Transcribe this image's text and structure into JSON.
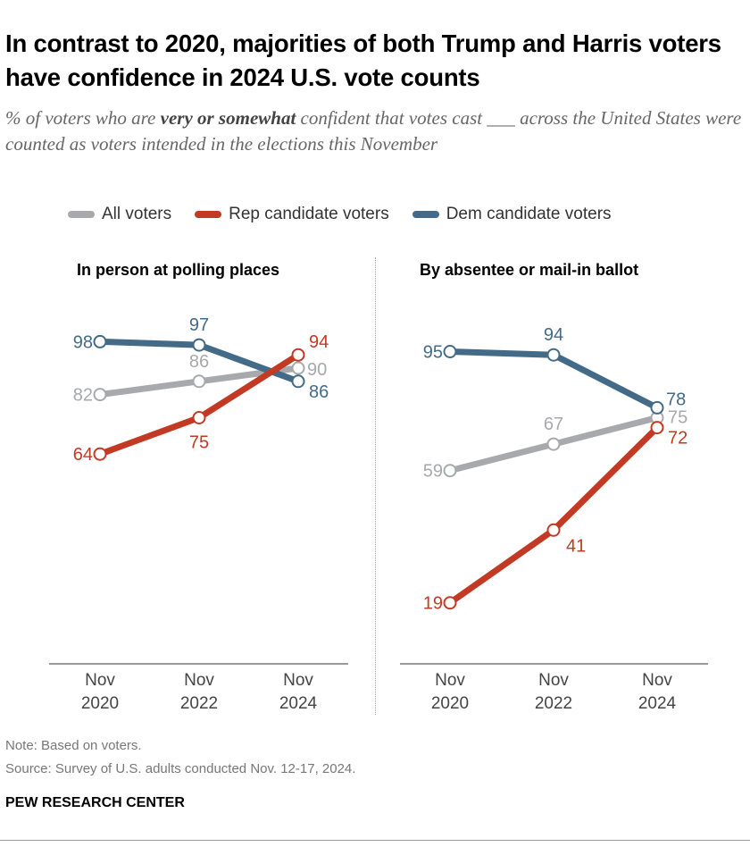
{
  "title": "In contrast to 2020, majorities of both Trump and Harris voters have confidence in 2024 U.S. vote counts",
  "subtitle": {
    "pre": "% of voters who are ",
    "emph": "very or somewhat",
    "post": " confident that votes cast ___ across the United States were counted as voters intended in the elections this November"
  },
  "colors": {
    "All voters": "#a7a9ac",
    "Rep candidate voters": "#c33a24",
    "Dem candidate voters": "#436b88"
  },
  "note": "Note: Based on voters.",
  "source": "Source: Survey of U.S. adults conducted Nov. 12-17, 2024.",
  "brand": "PEW RESEARCH CENTER",
  "chart_data": [
    {
      "type": "line",
      "title": "In person at polling places",
      "categories": [
        [
          "Nov",
          "2020"
        ],
        [
          "Nov",
          "2022"
        ],
        [
          "Nov",
          "2024"
        ]
      ],
      "ylim": [
        0,
        100
      ],
      "legend": "top",
      "series": [
        {
          "name": "All voters",
          "values": [
            82,
            86,
            90
          ]
        },
        {
          "name": "Dem candidate voters",
          "values": [
            98,
            97,
            86
          ]
        },
        {
          "name": "Rep candidate voters",
          "values": [
            64,
            75,
            94
          ]
        }
      ]
    },
    {
      "type": "line",
      "title": "By absentee or mail-in ballot",
      "categories": [
        [
          "Nov",
          "2020"
        ],
        [
          "Nov",
          "2022"
        ],
        [
          "Nov",
          "2024"
        ]
      ],
      "ylim": [
        0,
        100
      ],
      "legend": "top",
      "series": [
        {
          "name": "All voters",
          "values": [
            59,
            67,
            75
          ]
        },
        {
          "name": "Dem candidate voters",
          "values": [
            95,
            94,
            78
          ]
        },
        {
          "name": "Rep candidate voters",
          "values": [
            19,
            41,
            72
          ]
        }
      ]
    }
  ]
}
